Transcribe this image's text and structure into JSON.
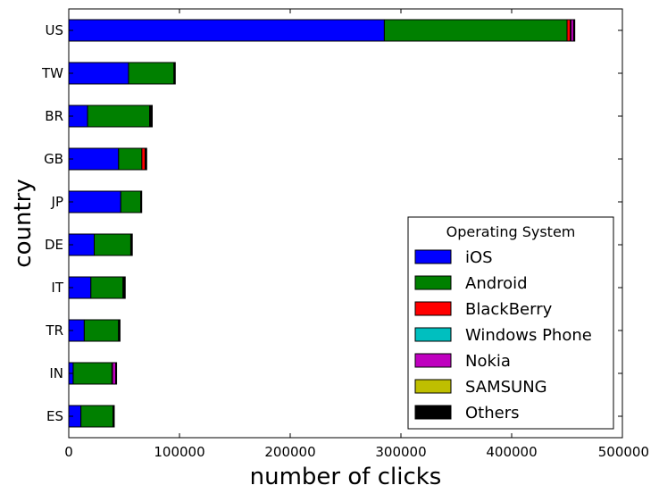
{
  "chart_data": {
    "type": "bar",
    "orientation": "horizontal",
    "stacked": true,
    "xlabel": "number of clicks",
    "ylabel": "country",
    "xlim": [
      0,
      500000
    ],
    "xticks": [
      0,
      100000,
      200000,
      300000,
      400000,
      500000
    ],
    "categories": [
      "US",
      "TW",
      "BR",
      "GB",
      "JP",
      "DE",
      "IT",
      "TR",
      "IN",
      "ES"
    ],
    "legend_title": "Operating System",
    "legend_position": "lower-right",
    "grid": false,
    "series": [
      {
        "name": "iOS",
        "color": "#0000ff",
        "values": [
          285000,
          54000,
          17000,
          45000,
          47000,
          23000,
          20000,
          14000,
          4000,
          11000
        ]
      },
      {
        "name": "Android",
        "color": "#008000",
        "values": [
          165000,
          41000,
          56000,
          21000,
          18000,
          33000,
          29000,
          31000,
          35000,
          29000
        ]
      },
      {
        "name": "BlackBerry",
        "color": "#ff0000",
        "values": [
          3000,
          200,
          300,
          3000,
          200,
          300,
          200,
          100,
          300,
          100
        ]
      },
      {
        "name": "Windows Phone",
        "color": "#00bfbf",
        "values": [
          500,
          200,
          200,
          300,
          100,
          200,
          200,
          100,
          200,
          100
        ]
      },
      {
        "name": "Nokia",
        "color": "#bf00bf",
        "values": [
          2500,
          100,
          500,
          500,
          100,
          200,
          300,
          200,
          3000,
          100
        ]
      },
      {
        "name": "SAMSUNG",
        "color": "#bfbf00",
        "values": [
          200,
          100,
          100,
          100,
          100,
          100,
          100,
          100,
          100,
          100
        ]
      },
      {
        "name": "Others",
        "color": "#000000",
        "values": [
          800,
          600,
          1300,
          500,
          400,
          600,
          1200,
          800,
          600,
          700
        ]
      }
    ]
  }
}
